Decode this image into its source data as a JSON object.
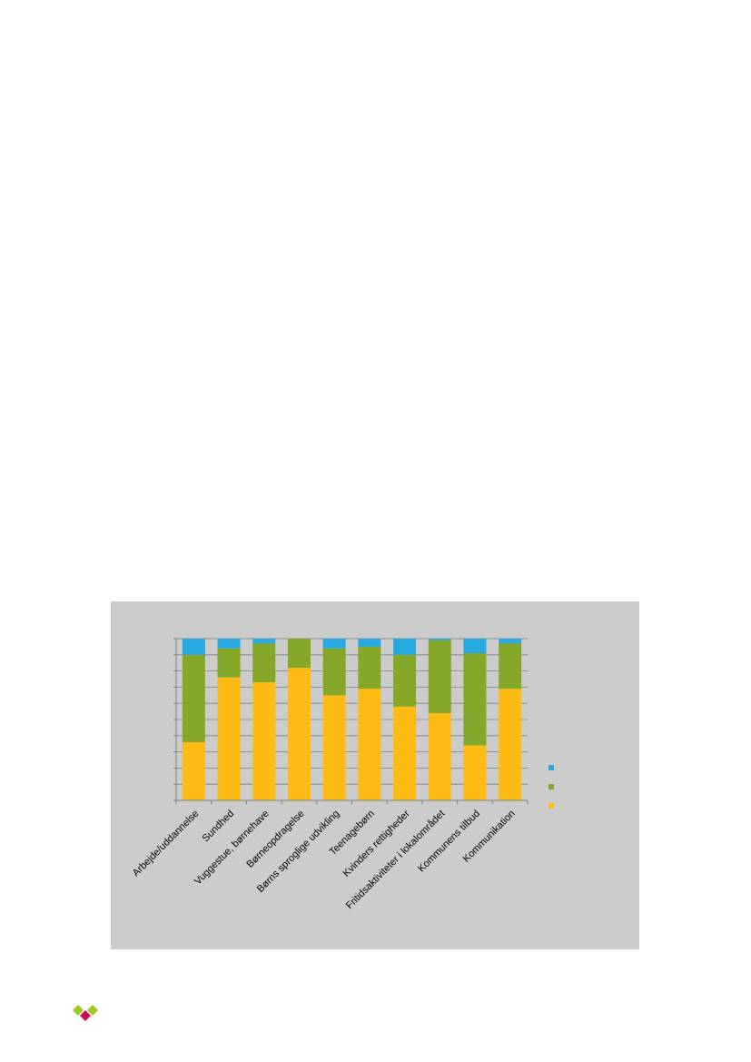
{
  "chart_data": {
    "type": "bar",
    "stacked": true,
    "categories": [
      "Arbejde/uddannelse",
      "Sundhed",
      "Vuggestue, børnehave",
      "Børneopdragelse",
      "Børns sproglige udvikling",
      "Teenagebørn",
      "Kvinders rettigheder",
      "Fritidsaktiviteter i lokalområdet",
      "Kommunens tilbud",
      "Kommunikation"
    ],
    "series": [
      {
        "color": "#fdbb14",
        "values": [
          36,
          76,
          73,
          82,
          65,
          69,
          58,
          54,
          34,
          69
        ]
      },
      {
        "color": "#85a829",
        "values": [
          54,
          18,
          24,
          18,
          29,
          26,
          32,
          45,
          57,
          28
        ]
      },
      {
        "color": "#29a9e1",
        "values": [
          10,
          6,
          3,
          0,
          6,
          5,
          10,
          1,
          9,
          3
        ]
      }
    ],
    "ylim": [
      0,
      100
    ],
    "grid": true,
    "legend_placement": "right"
  },
  "colors": {
    "panel_background": "#cccccc",
    "gridline": "#808080",
    "axis": "#808080"
  },
  "logo": {
    "icon": "brand-logo-icon",
    "colors": [
      "#a3c52e",
      "#d10a4f"
    ]
  }
}
